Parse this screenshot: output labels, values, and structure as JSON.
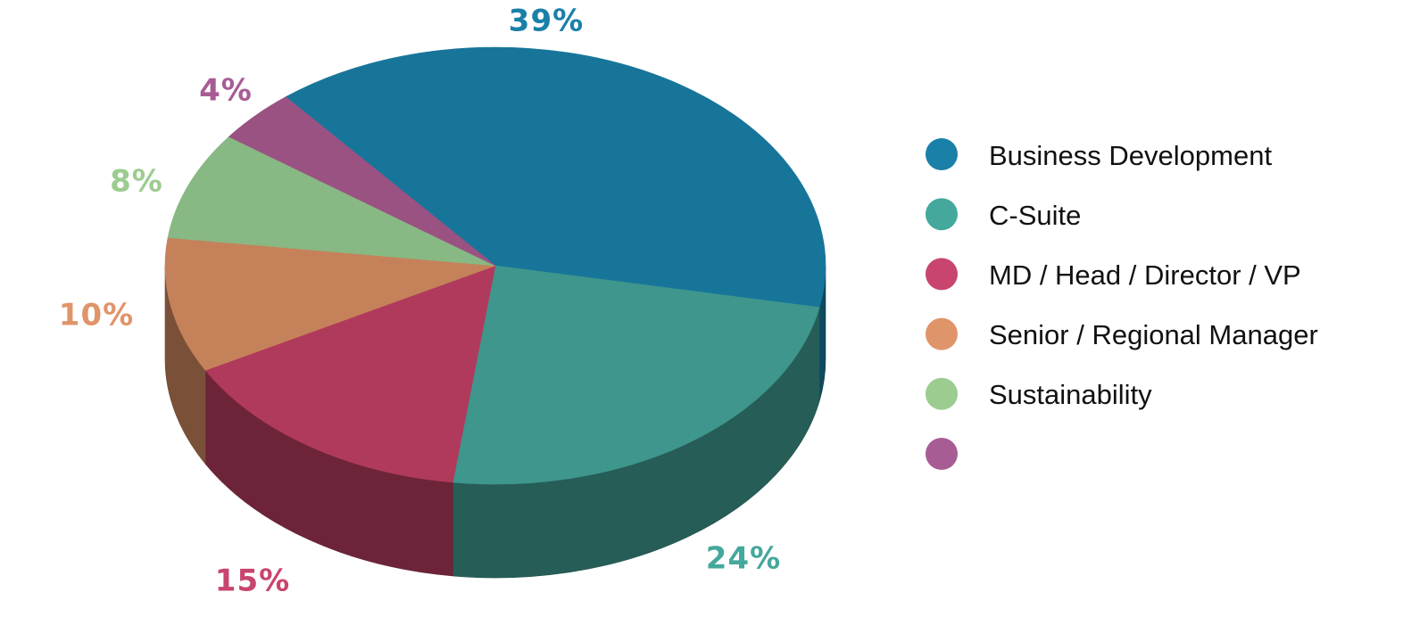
{
  "chart_data": {
    "type": "pie3d",
    "categories": [
      "Business Development",
      "C-Suite",
      "MD / Head / Director / VP",
      "Senior / Regional Manager",
      "Sustainability",
      null
    ],
    "values": [
      39,
      24,
      15,
      10,
      8,
      4
    ],
    "value_labels": [
      "39%",
      "24%",
      "15%",
      "10%",
      "8%",
      "4%"
    ],
    "colors": [
      "#18759a",
      "#3e968c",
      "#b03a5c",
      "#c5825a",
      "#88b883",
      "#9a5283"
    ],
    "legend_colors": [
      "#1a80a8",
      "#45a89c",
      "#c8456e",
      "#e0946a",
      "#9ccc90",
      "#a85c94"
    ]
  }
}
